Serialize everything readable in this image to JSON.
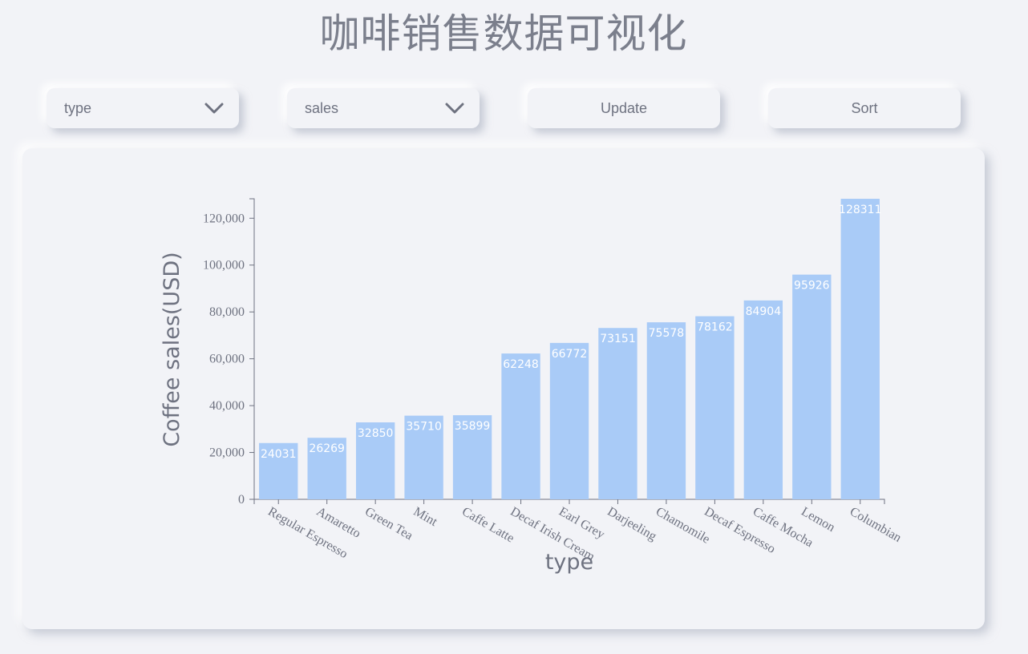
{
  "header": {
    "title": "咖啡销售数据可视化"
  },
  "controls": {
    "x_select": {
      "value": "type",
      "icon": "chevron-down-icon"
    },
    "y_select": {
      "value": "sales",
      "icon": "chevron-down-icon"
    },
    "update_label": "Update",
    "sort_label": "Sort"
  },
  "colors": {
    "background": "#f2f3f7",
    "bar": "#a9cbf7",
    "text": "#6e7280",
    "bar_label": "#ffffff"
  },
  "chart_data": {
    "type": "bar",
    "title": "",
    "xlabel": "type",
    "ylabel": "Coffee sales(USD)",
    "categories": [
      "Regular Espresso",
      "Amaretto",
      "Green Tea",
      "Mint",
      "Caffe Latte",
      "Decaf Irish Cream",
      "Earl Grey",
      "Darjeeling",
      "Chamomile",
      "Decaf Espresso",
      "Caffe Mocha",
      "Lemon",
      "Columbian"
    ],
    "values": [
      24031,
      26269,
      32850,
      35710,
      35899,
      62248,
      66772,
      73151,
      75578,
      78162,
      84904,
      95926,
      128311
    ],
    "yticks": [
      0,
      20000,
      40000,
      60000,
      80000,
      100000,
      120000
    ],
    "ytick_labels": [
      "0",
      "20,000",
      "40,000",
      "60,000",
      "80,000",
      "100,000",
      "120,000"
    ],
    "ylim": [
      0,
      128311
    ],
    "grid": false,
    "legend": "none",
    "data_labels": true
  }
}
